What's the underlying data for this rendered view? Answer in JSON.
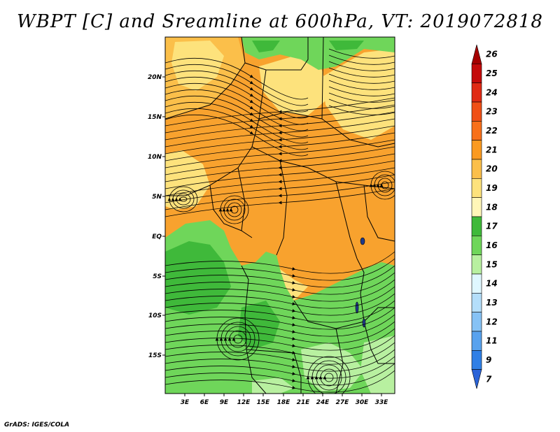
{
  "title": "WBPT [C] and Sreamline at 600hPa, VT: 2019072818",
  "credit": "GrADS: IGES/COLA",
  "lat_labels": [
    "20N",
    "15N",
    "10N",
    "5N",
    "EQ",
    "5S",
    "10S",
    "15S"
  ],
  "lon_labels": [
    "3E",
    "6E",
    "9E",
    "12E",
    "15E",
    "18E",
    "21E",
    "24E",
    "27E",
    "30E",
    "33E"
  ],
  "colorbar": {
    "labels": [
      "26",
      "25",
      "24",
      "23",
      "22",
      "21",
      "20",
      "19",
      "18",
      "17",
      "16",
      "15",
      "14",
      "13",
      "12",
      "11",
      "9",
      "7"
    ],
    "colors": [
      "#a50000",
      "#c40a0a",
      "#e02a14",
      "#f04f16",
      "#f8701a",
      "#fb9a20",
      "#fbbf4a",
      "#fde27c",
      "#fff6b8",
      "#3fb93a",
      "#6fd65a",
      "#b8f0a0",
      "#dff7ff",
      "#b4defa",
      "#86c2f5",
      "#58a2ee",
      "#2f7fe6",
      "#2a63d8"
    ]
  },
  "map": {
    "fields": {
      "orange": "#f8a22e",
      "light_orange": "#fbbf4a",
      "yellow": "#fde27c",
      "green": "#6fd65a",
      "dark_green": "#3fb93a",
      "light_green": "#b8f0a0"
    }
  }
}
